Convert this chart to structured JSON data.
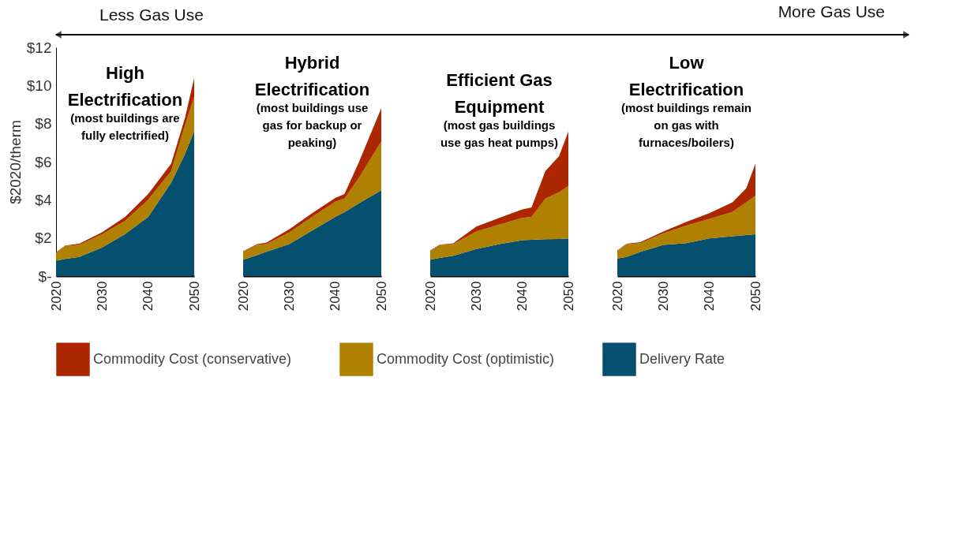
{
  "chart_data": [
    {
      "type": "area",
      "stacked": true,
      "title": "High Electrification",
      "subtitle": "(most buildings are fully electrified)",
      "ylabel": "$2020/therm",
      "annotations": [
        "Less Gas Use"
      ],
      "legend": "bottom",
      "grid": false,
      "x": [
        2020,
        2022,
        2025,
        2030,
        2035,
        2040,
        2045,
        2048,
        2050
      ],
      "xlim": [
        2020,
        2050
      ],
      "xticks": [
        2020,
        2030,
        2040,
        2050
      ],
      "ylim": [
        0,
        12
      ],
      "yticks": [
        {
          "value": 0,
          "label": "$-"
        },
        {
          "value": 2,
          "label": "$2"
        },
        {
          "value": 4,
          "label": "$4"
        },
        {
          "value": 6,
          "label": "$6"
        },
        {
          "value": 8,
          "label": "$8"
        },
        {
          "value": 10,
          "label": "$10"
        },
        {
          "value": 12,
          "label": "$12"
        }
      ],
      "series": [
        {
          "name": "Delivery Rate",
          "color": "#04506e",
          "values": [
            0.81,
            0.9,
            1.0,
            1.5,
            2.2,
            3.1,
            4.9,
            6.4,
            7.6
          ]
        },
        {
          "name": "Commodity Cost (optimistic)",
          "color": "#b08100",
          "values": [
            0.41,
            0.68,
            0.63,
            0.69,
            0.7,
            0.9,
            0.6,
            1.5,
            1.8
          ]
        },
        {
          "name": "Commodity Cost (conservative)",
          "color": "#ac2600",
          "values": [
            0.03,
            0.02,
            0.07,
            0.11,
            0.2,
            0.3,
            0.4,
            0.4,
            1.0
          ]
        }
      ]
    },
    {
      "type": "area",
      "stacked": true,
      "title": "Hybrid Electrification",
      "subtitle": "(most buildings use gas for backup or peaking)",
      "tick_labels": "x",
      "grid": false,
      "x": [
        2020,
        2023,
        2025,
        2030,
        2035,
        2040,
        2042,
        2045,
        2050
      ],
      "xlim": [
        2020,
        2050
      ],
      "xticks": [
        2020,
        2030,
        2040,
        2050
      ],
      "ylim": [
        0,
        12
      ],
      "series": [
        {
          "color": "#04506e",
          "values": [
            0.86,
            1.1,
            1.27,
            1.68,
            2.39,
            3.1,
            3.35,
            3.8,
            4.5
          ]
        },
        {
          "color": "#b08100",
          "values": [
            0.41,
            0.53,
            0.41,
            0.61,
            0.71,
            0.8,
            0.72,
            1.3,
            2.57
          ]
        },
        {
          "color": "#ac2600",
          "values": [
            0.03,
            0.05,
            0.07,
            0.16,
            0.2,
            0.2,
            0.23,
            0.8,
            1.73
          ]
        }
      ]
    },
    {
      "type": "area",
      "stacked": true,
      "title": "Efficient Gas Equipment",
      "subtitle": "(most gas buildings use gas heat pumps)",
      "tick_labels": "x",
      "grid": false,
      "x": [
        2020,
        2022,
        2025,
        2030,
        2035,
        2040,
        2042,
        2045,
        2048,
        2050
      ],
      "xlim": [
        2020,
        2050
      ],
      "xticks": [
        2020,
        2030,
        2040,
        2050
      ],
      "ylim": [
        0,
        12
      ],
      "series": [
        {
          "color": "#04506e",
          "values": [
            0.86,
            0.95,
            1.07,
            1.42,
            1.68,
            1.88,
            1.9,
            1.93,
            1.95,
            1.98
          ]
        },
        {
          "color": "#b08100",
          "values": [
            0.46,
            0.68,
            0.61,
            0.92,
            1.02,
            1.17,
            1.2,
            2.14,
            2.45,
            2.75
          ]
        },
        {
          "color": "#ac2600",
          "values": [
            0.02,
            0.02,
            0.04,
            0.26,
            0.35,
            0.45,
            0.5,
            1.43,
            1.9,
            2.85
          ]
        }
      ]
    },
    {
      "type": "area",
      "stacked": true,
      "title": "Low Electrification",
      "subtitle": "(most buildings remain on gas with furnaces/boilers)",
      "annotations": [
        "More Gas Use"
      ],
      "tick_labels": "x",
      "grid": false,
      "x": [
        2020,
        2022,
        2025,
        2030,
        2035,
        2040,
        2045,
        2048,
        2050
      ],
      "xlim": [
        2020,
        2050
      ],
      "xticks": [
        2020,
        2030,
        2040,
        2050
      ],
      "ylim": [
        0,
        12
      ],
      "series": [
        {
          "color": "#04506e",
          "values": [
            0.92,
            1.0,
            1.27,
            1.63,
            1.73,
            1.98,
            2.09,
            2.15,
            2.19
          ]
        },
        {
          "color": "#b08100",
          "values": [
            0.4,
            0.68,
            0.46,
            0.61,
            0.92,
            1.02,
            1.27,
            1.72,
            2.03
          ]
        },
        {
          "color": "#ac2600",
          "values": [
            0.02,
            0.02,
            0.05,
            0.1,
            0.2,
            0.3,
            0.51,
            0.73,
            1.68
          ]
        }
      ]
    }
  ]
}
